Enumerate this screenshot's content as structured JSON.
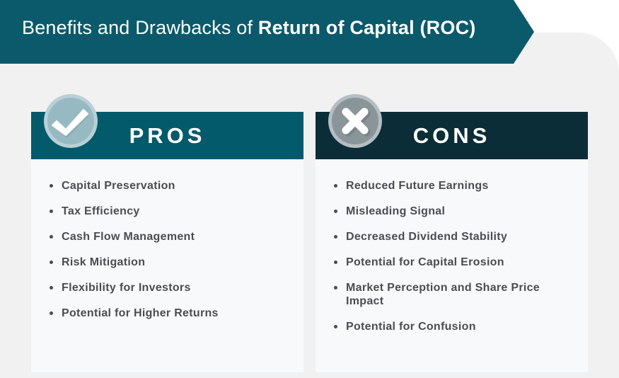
{
  "title": {
    "prefix": "Benefits and Drawbacks of ",
    "bold": "Return of Capital (ROC)"
  },
  "pros": {
    "heading": "PROS",
    "icon": "checkmark-icon",
    "items": [
      "Capital Preservation",
      "Tax Efficiency",
      "Cash Flow Management",
      "Risk Mitigation",
      "Flexibility for Investors",
      "Potential for Higher Returns"
    ]
  },
  "cons": {
    "heading": "CONS",
    "icon": "x-mark-icon",
    "items": [
      "Reduced Future Earnings",
      "Misleading Signal",
      "Decreased Dividend Stability",
      "Potential for Capital Erosion",
      "Market Perception and Share Price Impact",
      "Potential for Confusion"
    ]
  },
  "colors": {
    "title_banner": "#0b5a6b",
    "pros_header": "#025a6b",
    "cons_header": "#0a2d37",
    "panel_bg": "#f1f1f2",
    "card_bg": "#f8f9fb",
    "text": "#4a4d52"
  }
}
